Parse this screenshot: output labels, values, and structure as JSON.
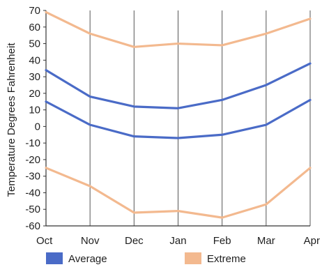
{
  "chart_data": {
    "type": "line",
    "title": "",
    "xlabel": "",
    "ylabel": "Temperature Degrees Fahrenheit",
    "categories": [
      "Oct",
      "Nov",
      "Dec",
      "Jan",
      "Feb",
      "Mar",
      "Apr"
    ],
    "ylim": [
      -60,
      70
    ],
    "yticks": [
      70,
      60,
      50,
      40,
      30,
      20,
      10,
      0,
      -10,
      -20,
      -30,
      -40,
      -50,
      -60
    ],
    "grid": "vertical lines at each category",
    "legend_position": "bottom",
    "series": [
      {
        "name": "Average",
        "group": "Average",
        "color": "#4a6bc7",
        "values": [
          34,
          18,
          12,
          11,
          16,
          25,
          38
        ]
      },
      {
        "name": "Average",
        "group": "Average",
        "color": "#4a6bc7",
        "values": [
          15,
          1,
          -6,
          -7,
          -5,
          1,
          16
        ]
      },
      {
        "name": "Extreme",
        "group": "Extreme",
        "color": "#f3b98f",
        "values": [
          69,
          56,
          48,
          50,
          49,
          56,
          65
        ]
      },
      {
        "name": "Extreme",
        "group": "Extreme",
        "color": "#f3b98f",
        "values": [
          -25,
          -36,
          -52,
          -51,
          -55,
          -47,
          -25
        ]
      }
    ],
    "legend": [
      {
        "label": "Average",
        "color": "#4a6bc7"
      },
      {
        "label": "Extreme",
        "color": "#f3b98f"
      }
    ]
  }
}
